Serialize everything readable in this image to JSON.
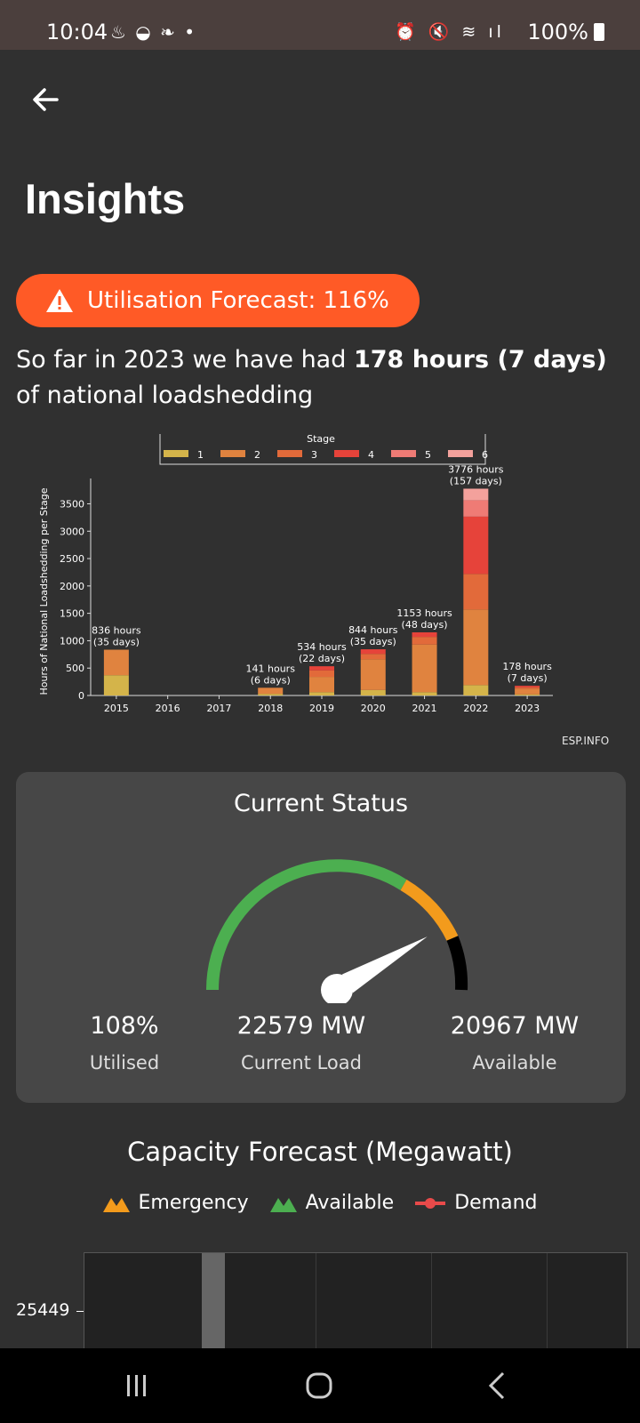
{
  "status_bar": {
    "time": "10:04",
    "notif_icons": "♨ ◒ ❧ •",
    "right_icons": "⏰ 🔇 ≋ ıl",
    "battery": "100%"
  },
  "header": {
    "title": "Insights"
  },
  "forecast_pill": {
    "text": "Utilisation Forecast: 116%",
    "color": "#ff5a26"
  },
  "summary": {
    "prefix": "So far in 2023 we have had ",
    "bold": "178 hours (7 days)",
    "suffix": " of national loadshedding"
  },
  "chart_data": {
    "type": "bar",
    "stacked": true,
    "legend_title": "Stage",
    "ylabel": "Hours of National Loadshedding per Stage",
    "categories": [
      "2015",
      "2016",
      "2017",
      "2018",
      "2019",
      "2020",
      "2021",
      "2022",
      "2023"
    ],
    "yticks": [
      0,
      500,
      1000,
      1500,
      2000,
      2500,
      3000,
      3500
    ],
    "ylim": [
      0,
      3800
    ],
    "series": [
      {
        "name": "1",
        "color": "#d4b44a",
        "values": [
          370,
          0,
          0,
          30,
          60,
          100,
          60,
          190,
          20
        ]
      },
      {
        "name": "2",
        "color": "#e0833f",
        "values": [
          466,
          0,
          0,
          111,
          280,
          560,
          870,
          1380,
          100
        ]
      },
      {
        "name": "3",
        "color": "#e26a3a",
        "values": [
          0,
          0,
          0,
          0,
          120,
          100,
          140,
          650,
          30
        ]
      },
      {
        "name": "4",
        "color": "#e6433a",
        "values": [
          0,
          0,
          0,
          0,
          74,
          84,
          83,
          1046,
          28
        ]
      },
      {
        "name": "5",
        "color": "#ef7b75",
        "values": [
          0,
          0,
          0,
          0,
          0,
          0,
          0,
          300,
          0
        ]
      },
      {
        "name": "6",
        "color": "#f3a19c",
        "values": [
          0,
          0,
          0,
          0,
          0,
          0,
          0,
          210,
          0
        ]
      }
    ],
    "bar_labels": [
      {
        "cat": "2015",
        "l1": "836 hours",
        "l2": "(35 days)"
      },
      {
        "cat": "2018",
        "l1": "141 hours",
        "l2": "(6 days)"
      },
      {
        "cat": "2019",
        "l1": "534 hours",
        "l2": "(22 days)"
      },
      {
        "cat": "2020",
        "l1": "844 hours",
        "l2": "(35 days)"
      },
      {
        "cat": "2021",
        "l1": "1153 hours",
        "l2": "(48 days)"
      },
      {
        "cat": "2022",
        "l1": "3776 hours",
        "l2": "(157 days)"
      },
      {
        "cat": "2023",
        "l1": "178 hours",
        "l2": "(7 days)"
      }
    ],
    "totals": [
      836,
      0,
      0,
      141,
      534,
      844,
      1153,
      3776,
      178
    ],
    "watermark": "ESP.INFO"
  },
  "current_status": {
    "title": "Current Status",
    "gauge_utilisation_pct": 108,
    "stats": [
      {
        "value": "108%",
        "label": "Utilised"
      },
      {
        "value": "22579 MW",
        "label": "Current Load"
      },
      {
        "value": "20967 MW",
        "label": "Available"
      }
    ]
  },
  "capacity_forecast": {
    "title": "Capacity Forecast (Megawatt)",
    "legend": [
      {
        "label": "Emergency",
        "color": "#f39b1c",
        "icon": "mountain-icon"
      },
      {
        "label": "Available",
        "color": "#4caf50",
        "icon": "mountain-icon"
      },
      {
        "label": "Demand",
        "color": "#e84a4a",
        "icon": "line-dot-icon"
      }
    ],
    "ytick": "25449"
  }
}
